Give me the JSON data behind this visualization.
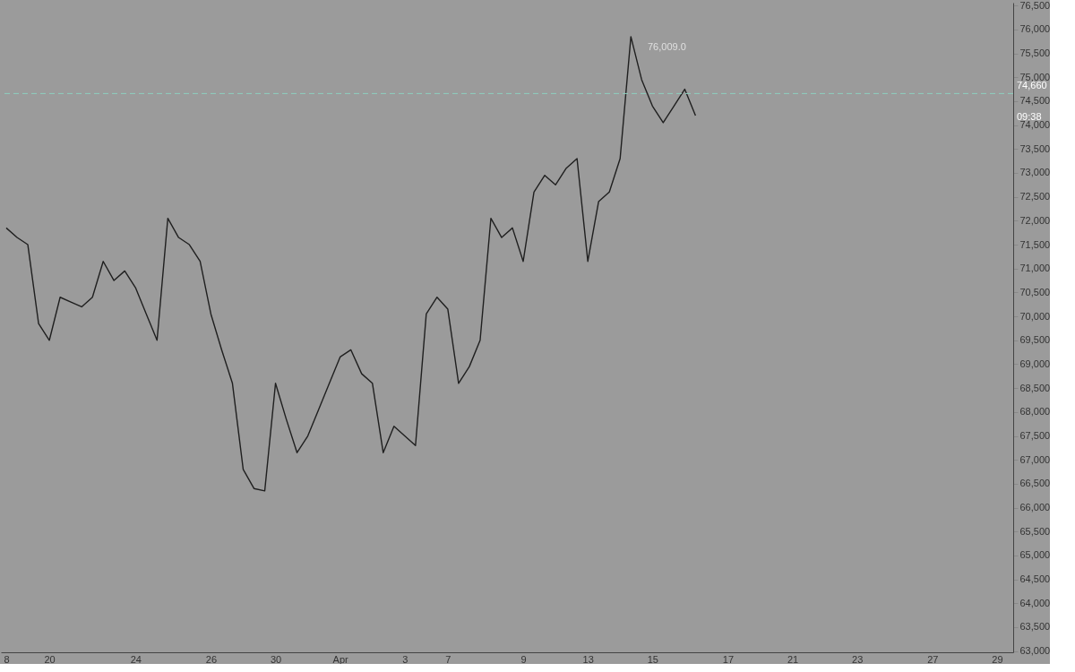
{
  "chart_data": {
    "type": "line",
    "categories": [
      "8",
      null,
      null,
      null,
      "20",
      null,
      null,
      null,
      null,
      null,
      null,
      null,
      "24",
      null,
      null,
      null,
      null,
      null,
      null,
      "26",
      null,
      null,
      null,
      null,
      null,
      "30",
      null,
      null,
      null,
      null,
      null,
      "Apr",
      null,
      null,
      null,
      null,
      null,
      "3",
      null,
      null,
      null,
      "7",
      null,
      null,
      null,
      null,
      null,
      null,
      "9",
      null,
      null,
      null,
      null,
      null,
      "13",
      null,
      null,
      null,
      null,
      null,
      "15",
      null,
      null,
      null,
      null,
      null,
      null,
      "17",
      null,
      null,
      null,
      null,
      null,
      "21",
      null,
      null,
      null,
      null,
      null,
      "23",
      null,
      null,
      null,
      null,
      null,
      null,
      "27",
      null,
      null,
      null,
      null,
      null,
      "29",
      null
    ],
    "series": [
      {
        "color": "#1f1f1f",
        "values": [
          71850,
          71650,
          71500,
          69850,
          69500,
          70400,
          70300,
          70200,
          70400,
          71150,
          70750,
          70950,
          70600,
          70050,
          69500,
          72050,
          71650,
          71500,
          71150,
          70050,
          69300,
          68600,
          66800,
          66400,
          66350,
          68600,
          67850,
          67150,
          67500,
          68050,
          68600,
          69150,
          69300,
          68800,
          68600,
          67150,
          67700,
          67500,
          67300,
          70050,
          70400,
          70150,
          68600,
          68950,
          69500,
          72050,
          71650,
          71850,
          71150,
          72600,
          72950,
          72750,
          73100,
          73300,
          71150,
          72400,
          72600,
          73300,
          75850,
          74950,
          74400,
          74050,
          74400,
          74750,
          74200,
          null,
          null,
          null,
          null,
          null,
          null,
          null,
          null,
          null,
          null,
          null,
          null,
          null,
          null,
          null,
          null,
          null,
          null,
          null,
          null,
          null,
          null,
          null,
          null,
          null,
          null,
          null,
          null,
          null
        ]
      }
    ],
    "ylim": [
      62975,
      76560
    ],
    "yticks": [
      {
        "value": 63000,
        "label": "63,000"
      },
      {
        "value": 63500,
        "label": "63,500"
      },
      {
        "value": 64000,
        "label": "64,000"
      },
      {
        "value": 64500,
        "label": "64,500"
      },
      {
        "value": 65000,
        "label": "65,000"
      },
      {
        "value": 65500,
        "label": "65,500"
      },
      {
        "value": 66000,
        "label": "66,000"
      },
      {
        "value": 66500,
        "label": "66,500"
      },
      {
        "value": 67000,
        "label": "67,000"
      },
      {
        "value": 67500,
        "label": "67,500"
      },
      {
        "value": 68000,
        "label": "68,000"
      },
      {
        "value": 68500,
        "label": "68,500"
      },
      {
        "value": 69000,
        "label": "69,000"
      },
      {
        "value": 69500,
        "label": "69,500"
      },
      {
        "value": 70000,
        "label": "70,000"
      },
      {
        "value": 70500,
        "label": "70,500"
      },
      {
        "value": 71000,
        "label": "71,000"
      },
      {
        "value": 71500,
        "label": "71,500"
      },
      {
        "value": 72000,
        "label": "72,000"
      },
      {
        "value": 72500,
        "label": "72,500"
      },
      {
        "value": 73000,
        "label": "73,000"
      },
      {
        "value": 73500,
        "label": "73,500"
      },
      {
        "value": 74000,
        "label": "74,000"
      },
      {
        "value": 74500,
        "label": "74,500"
      },
      {
        "value": 75000,
        "label": "75,000"
      },
      {
        "value": 75500,
        "label": "75,500"
      },
      {
        "value": 76000,
        "label": "76,000"
      },
      {
        "value": 76500,
        "label": "76,500"
      }
    ],
    "ref_lines": [
      {
        "axis": "y",
        "value": 74660,
        "label": "74,660",
        "color": "#8fd0c0",
        "line_style": "dashed"
      }
    ],
    "annotations": [
      "76,009.0",
      "09:38"
    ],
    "grid": false
  }
}
